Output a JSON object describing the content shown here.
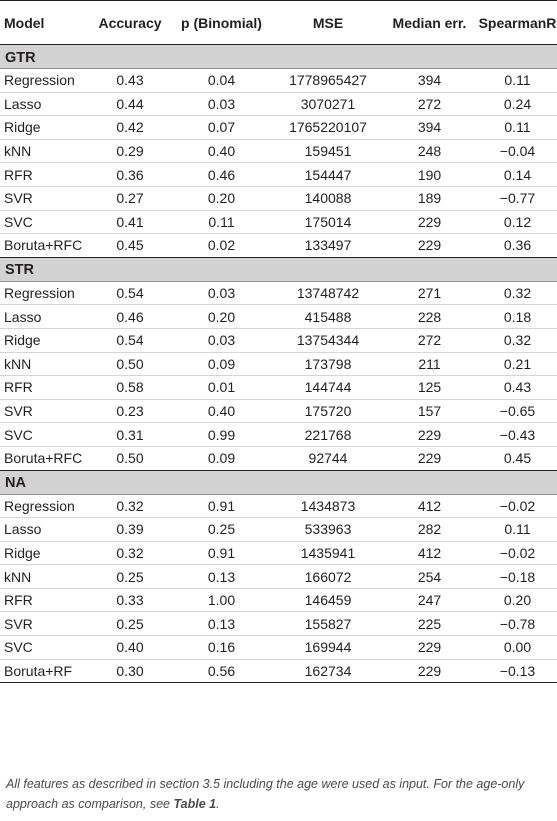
{
  "columns": [
    "Model",
    "Accuracy",
    "p (Binomial)",
    "MSE",
    "Median err.",
    "SpearmanR"
  ],
  "groups": [
    {
      "name": "GTR",
      "rows": [
        [
          "Regression",
          "0.43",
          "0.04",
          "1778965427",
          "394",
          "0.11"
        ],
        [
          "Lasso",
          "0.44",
          "0.03",
          "3070271",
          "272",
          "0.24"
        ],
        [
          "Ridge",
          "0.42",
          "0.07",
          "1765220107",
          "394",
          "0.11"
        ],
        [
          "kNN",
          "0.29",
          "0.40",
          "159451",
          "248",
          "−0.04"
        ],
        [
          "RFR",
          "0.36",
          "0.46",
          "154447",
          "190",
          "0.14"
        ],
        [
          "SVR",
          "0.27",
          "0.20",
          "140088",
          "189",
          "−0.77"
        ],
        [
          "SVC",
          "0.41",
          "0.11",
          "175014",
          "229",
          "0.12"
        ],
        [
          "Boruta+RFC",
          "0.45",
          "0.02",
          "133497",
          "229",
          "0.36"
        ]
      ]
    },
    {
      "name": "STR",
      "rows": [
        [
          "Regression",
          "0.54",
          "0.03",
          "13748742",
          "271",
          "0.32"
        ],
        [
          "Lasso",
          "0.46",
          "0.20",
          "415488",
          "228",
          "0.18"
        ],
        [
          "Ridge",
          "0.54",
          "0.03",
          "13754344",
          "272",
          "0.32"
        ],
        [
          "kNN",
          "0.50",
          "0.09",
          "173798",
          "211",
          "0.21"
        ],
        [
          "RFR",
          "0.58",
          "0.01",
          "144744",
          "125",
          "0.43"
        ],
        [
          "SVR",
          "0.23",
          "0.40",
          "175720",
          "157",
          "−0.65"
        ],
        [
          "SVC",
          "0.31",
          "0.99",
          "221768",
          "229",
          "−0.43"
        ],
        [
          "Boruta+RFC",
          "0.50",
          "0.09",
          "92744",
          "229",
          "0.45"
        ]
      ]
    },
    {
      "name": "NA",
      "rows": [
        [
          "Regression",
          "0.32",
          "0.91",
          "1434873",
          "412",
          "−0.02"
        ],
        [
          "Lasso",
          "0.39",
          "0.25",
          "533963",
          "282",
          "0.11"
        ],
        [
          "Ridge",
          "0.32",
          "0.91",
          "1435941",
          "412",
          "−0.02"
        ],
        [
          "kNN",
          "0.25",
          "0.13",
          "166072",
          "254",
          "−0.18"
        ],
        [
          "RFR",
          "0.33",
          "1.00",
          "146459",
          "247",
          "0.20"
        ],
        [
          "SVR",
          "0.25",
          "0.13",
          "155827",
          "225",
          "−0.78"
        ],
        [
          "SVC",
          "0.40",
          "0.16",
          "169944",
          "229",
          "0.00"
        ],
        [
          "Boruta+RF",
          "0.30",
          "0.56",
          "162734",
          "229",
          "−0.13"
        ]
      ]
    }
  ],
  "footnote": {
    "text_before": "All features as described in section 3.5 including the age were used as input. For the age-only approach as comparison, see ",
    "link": "Table 1",
    "text_after": "."
  }
}
